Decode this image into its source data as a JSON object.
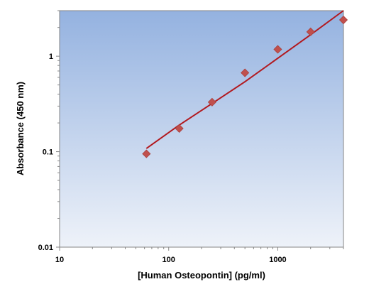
{
  "chart_data": {
    "type": "scatter",
    "title": "",
    "xlabel": "[Human Osteopontin] (pg/ml)",
    "ylabel": "Absorbance (450 nm)",
    "xscale": "log",
    "yscale": "log",
    "xlim": [
      10,
      4000
    ],
    "ylim": [
      0.01,
      3
    ],
    "xticks": [
      {
        "value": 10,
        "label": "10"
      },
      {
        "value": 100,
        "label": "100"
      },
      {
        "value": 1000,
        "label": "1000"
      }
    ],
    "yticks": [
      {
        "value": 0.01,
        "label": "0.01"
      },
      {
        "value": 0.1,
        "label": "0.1"
      },
      {
        "value": 1,
        "label": "1"
      }
    ],
    "grid": false,
    "legend": "none",
    "series": [
      {
        "marker": "diamond",
        "color": "#c0504d",
        "x": [
          62.5,
          125,
          250,
          500,
          1000,
          2000,
          4000
        ],
        "y": [
          0.095,
          0.175,
          0.33,
          0.67,
          1.18,
          1.8,
          2.4
        ]
      }
    ],
    "fit_line": {
      "color": "#b2191f",
      "x": [
        62.5,
        125,
        250,
        500,
        1000,
        2000,
        4000
      ],
      "y": [
        0.108,
        0.19,
        0.32,
        0.54,
        0.95,
        1.68,
        3.0
      ]
    },
    "background_gradient": [
      "#94b2e0",
      "#eef2f9"
    ]
  }
}
